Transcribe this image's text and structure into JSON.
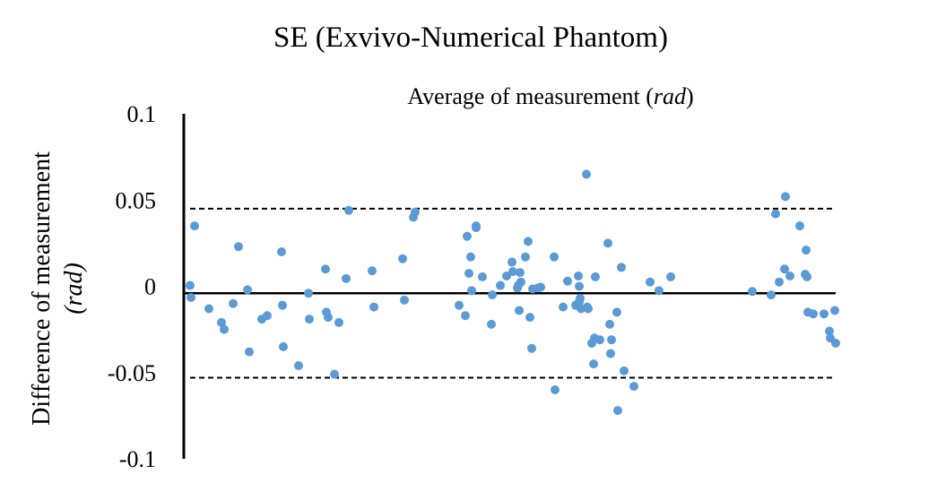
{
  "chart_data": {
    "type": "scatter",
    "title": "SE (Exvivo-Numerical Phantom)",
    "xlabel_main": "Average of measurement (",
    "xlabel_unit": "rad",
    "xlabel_close": ")",
    "ylabel_main": "Difference of measurement",
    "ylabel_unit": "(rad)",
    "ylim": [
      -0.1,
      0.1
    ],
    "yticks": [
      "0.1",
      "0.05",
      "0",
      "-0.05",
      "-0.1"
    ],
    "ytick_values": [
      0.1,
      0.05,
      0,
      -0.05,
      -0.1
    ],
    "mean_diff": -0.004,
    "upper_loa": 0.045,
    "lower_loa": -0.053,
    "point_color": "#5b9bd5",
    "x": [
      212,
      213,
      217,
      233,
      247,
      250,
      260,
      266,
      276,
      278,
      292,
      298,
      314,
      315,
      316,
      333,
      344,
      345,
      363,
      364,
      366,
      373,
      378,
      386,
      389,
      415,
      417,
      449,
      451,
      461,
      463,
      512,
      519,
      521,
      523,
      525,
      526,
      531,
      531,
      538,
      548,
      549,
      558,
      565,
      571,
      572,
      577,
      578,
      579,
      580,
      581,
      586,
      589,
      591,
      593,
      594,
      600,
      603,
      618,
      619,
      628,
      633,
      642,
      645,
      646,
      646,
      647,
      648,
      654,
      655,
      656,
      660,
      662,
      663,
      664,
      669,
      678,
      680,
      681,
      682,
      688,
      689,
      693,
      696,
      707,
      725,
      735,
      748,
      839,
      860,
      865,
      869,
      875,
      876,
      881,
      892,
      898,
      899,
      900,
      901,
      907,
      919,
      925,
      926,
      931,
      932
    ],
    "y": [
      0.0005,
      -0.0065,
      0.035,
      -0.013,
      -0.021,
      -0.025,
      -0.01,
      0.023,
      -0.002,
      -0.038,
      -0.019,
      -0.017,
      0.02,
      -0.011,
      -0.035,
      -0.046,
      -0.004,
      -0.019,
      0.01,
      -0.015,
      -0.018,
      -0.051,
      -0.021,
      0.0045,
      0.044,
      0.009,
      -0.012,
      0.016,
      -0.008,
      0.04,
      0.043,
      -0.011,
      -0.017,
      0.029,
      0.0075,
      0.017,
      -0.0025,
      0.034,
      0.035,
      0.0055,
      -0.022,
      -0.005,
      0.0005,
      0.006,
      0.014,
      0.0085,
      -0.001,
      0.0005,
      -0.014,
      0.008,
      0.0025,
      0.017,
      0.026,
      -0.018,
      -0.036,
      -0.0015,
      -0.001,
      -0.0005,
      0.017,
      -0.06,
      -0.012,
      0.003,
      -0.011,
      0.006,
      -0.009,
      0.0,
      -0.007,
      -0.013,
      0.065,
      -0.012,
      -0.013,
      -0.033,
      -0.045,
      -0.03,
      0.0055,
      -0.031,
      0.025,
      -0.022,
      -0.039,
      -0.031,
      -0.015,
      -0.072,
      0.011,
      -0.049,
      -0.058,
      0.0025,
      -0.0025,
      0.0055,
      -0.003,
      -0.005,
      0.042,
      0.0025,
      0.01,
      0.052,
      0.006,
      0.035,
      0.007,
      0.021,
      0.0055,
      -0.015,
      -0.016,
      -0.016,
      -0.026,
      -0.03,
      -0.014,
      -0.033
    ]
  }
}
